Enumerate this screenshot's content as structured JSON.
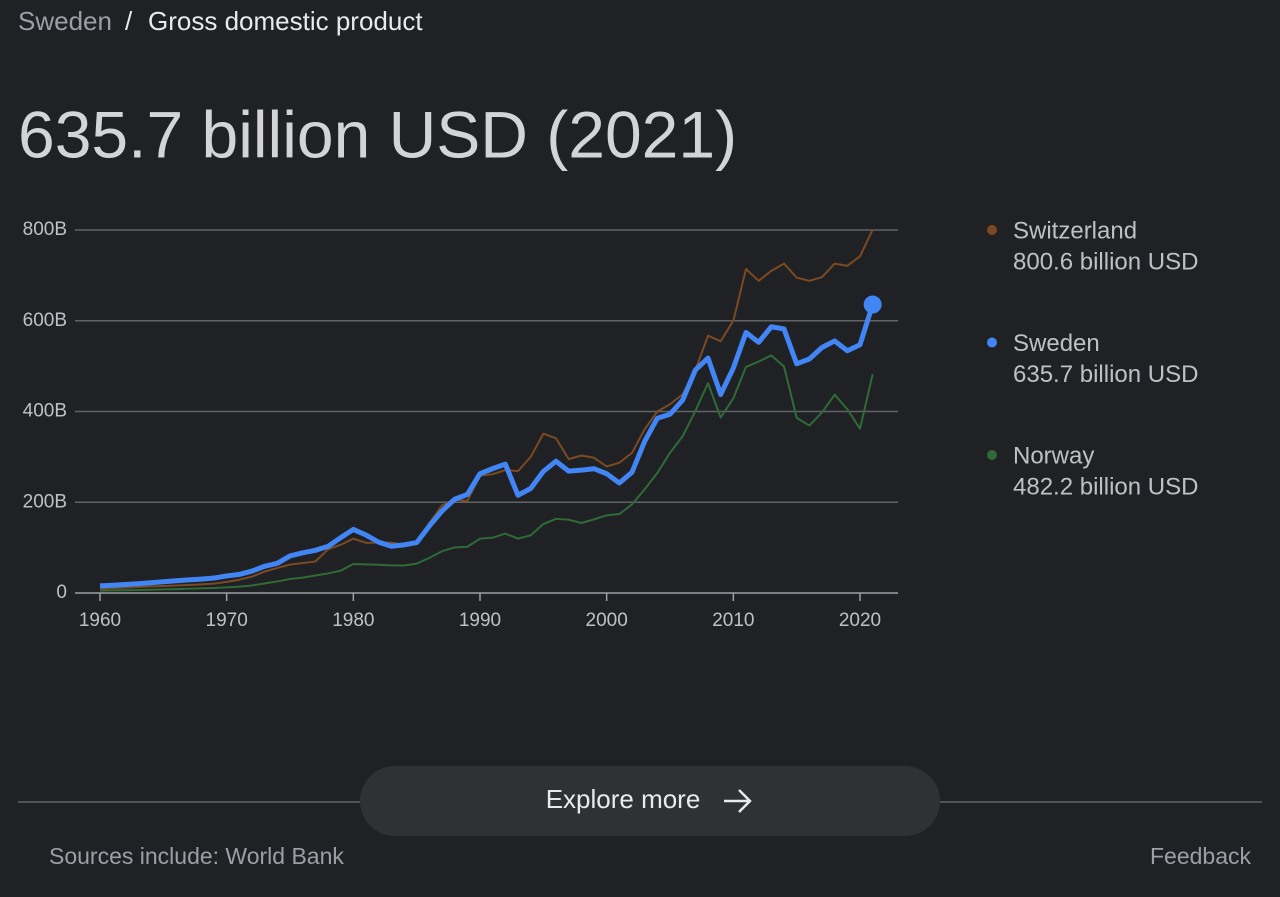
{
  "breadcrumb": {
    "parent": "Sweden",
    "separator": "/",
    "current": "Gross domestic product"
  },
  "headline": "635.7 billion USD (2021)",
  "chart_data": {
    "type": "line",
    "x": [
      1960,
      1961,
      1962,
      1963,
      1964,
      1965,
      1966,
      1967,
      1968,
      1969,
      1970,
      1971,
      1972,
      1973,
      1974,
      1975,
      1976,
      1977,
      1978,
      1979,
      1980,
      1981,
      1982,
      1983,
      1984,
      1985,
      1986,
      1987,
      1988,
      1989,
      1990,
      1991,
      1992,
      1993,
      1994,
      1995,
      1996,
      1997,
      1998,
      1999,
      2000,
      2001,
      2002,
      2003,
      2004,
      2005,
      2006,
      2007,
      2008,
      2009,
      2010,
      2011,
      2012,
      2013,
      2014,
      2015,
      2016,
      2017,
      2018,
      2019,
      2020,
      2021
    ],
    "xlim": [
      1960,
      2021
    ],
    "xticks": [
      1960,
      1970,
      1980,
      1990,
      2000,
      2010,
      2020
    ],
    "ylim": [
      0,
      800
    ],
    "yticks": [
      0,
      {
        "value": 200,
        "label": "200B"
      },
      {
        "value": 400,
        "label": "400B"
      },
      {
        "value": 600,
        "label": "600B"
      },
      {
        "value": 800,
        "label": "800B"
      }
    ],
    "grid": true,
    "series": [
      {
        "name": "Switzerland",
        "color": "#7b4a22",
        "latest_label": "800.6 billion USD",
        "values": [
          9.5,
          10.7,
          11.9,
          13.1,
          14.5,
          15.3,
          16.4,
          17.6,
          18.9,
          20.7,
          24.5,
          29.3,
          36.2,
          47.3,
          55.2,
          62.6,
          66.2,
          69.4,
          96.1,
          106.4,
          119.7,
          110.5,
          111.0,
          111.0,
          105.7,
          107.5,
          154.0,
          193.0,
          205.7,
          202.8,
          258.5,
          262.0,
          271.0,
          268.6,
          300.0,
          351.0,
          341.0,
          295.0,
          303.0,
          298.0,
          279.0,
          287.0,
          309.0,
          361.0,
          400.0,
          416.0,
          438.0,
          491.0,
          567.0,
          555.0,
          600.0,
          714.0,
          688.0,
          710.0,
          726.0,
          695.0,
          688.0,
          696.0,
          726.0,
          721.0,
          742.0,
          800.6
        ]
      },
      {
        "name": "Sweden",
        "color": "#4285f4",
        "latest_label": "635.7 billion USD",
        "values": [
          15.8,
          17.2,
          18.7,
          20.3,
          22.5,
          24.9,
          27.0,
          29.0,
          30.7,
          33.0,
          37.6,
          41.0,
          48.4,
          58.9,
          65.5,
          81.7,
          88.6,
          94.1,
          102.7,
          121.8,
          140.1,
          127.8,
          112.1,
          103.0,
          106.1,
          111.1,
          147.7,
          180.6,
          206.6,
          217.3,
          262.9,
          274.1,
          284.0,
          215.4,
          230.3,
          268.0,
          290.4,
          268.5,
          270.7,
          273.9,
          262.8,
          242.4,
          266.1,
          334.3,
          385.1,
          393.9,
          425.1,
          491.2,
          517.7,
          437.5,
          495.8,
          574.1,
          552.5,
          586.8,
          581.9,
          505.1,
          515.7,
          541.0,
          555.5,
          533.9,
          547.1,
          635.7
        ]
      },
      {
        "name": "Norway",
        "color": "#2e6b36",
        "latest_label": "482.2 billion USD",
        "values": [
          5.2,
          5.7,
          6.1,
          6.6,
          7.2,
          7.9,
          8.6,
          9.4,
          10.1,
          11.0,
          12.4,
          14.0,
          16.6,
          21.3,
          25.5,
          30.9,
          33.8,
          38.6,
          43.1,
          49.2,
          63.9,
          63.0,
          62.2,
          60.9,
          60.7,
          64.7,
          77.4,
          92.1,
          100.5,
          101.6,
          119.8,
          121.9,
          130.9,
          119.9,
          127.1,
          152.0,
          163.5,
          161.4,
          154.3,
          162.3,
          171.2,
          174.0,
          195.4,
          228.6,
          264.4,
          308.9,
          345.6,
          400.9,
          462.5,
          386.6,
          429.1,
          498.3,
          510.2,
          523.5,
          499.3,
          386.0,
          369.0,
          398.0,
          437.0,
          405.0,
          362.2,
          482.2
        ]
      }
    ]
  },
  "button": "Explore more",
  "sources": "Sources include: World Bank",
  "feedback": "Feedback"
}
